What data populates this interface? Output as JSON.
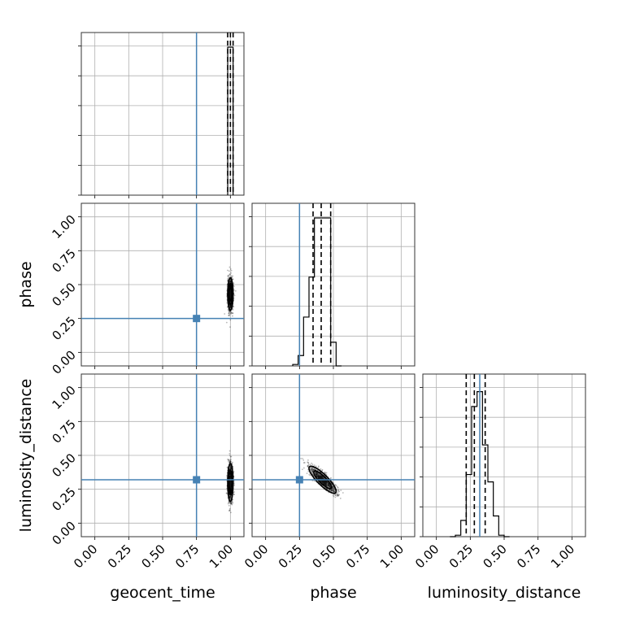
{
  "chart_data": {
    "type": "corner",
    "parameters": [
      {
        "name": "geocent_time",
        "label": "geocent_time",
        "truth": 0.75
      },
      {
        "name": "phase",
        "label": "phase",
        "truth": 0.25
      },
      {
        "name": "luminosity_distance",
        "label": "luminosity_distance",
        "truth": 0.32
      }
    ],
    "axis_range": [
      -0.1,
      1.1
    ],
    "ticks": [
      "0.00",
      "0.25",
      "0.50",
      "0.75",
      "1.00"
    ],
    "grid": true,
    "truth_color": "#4682b4",
    "histograms": [
      {
        "parameter": "geocent_time",
        "bin_edges": [
          0.98,
          1.02
        ],
        "counts": [
          1.0
        ],
        "quantiles": [
          0.98,
          1.0,
          1.02
        ]
      },
      {
        "parameter": "phase",
        "bin_edges": [
          0.2,
          0.24,
          0.28,
          0.32,
          0.36,
          0.4,
          0.44,
          0.48,
          0.52,
          0.56
        ],
        "counts": [
          0.01,
          0.07,
          0.33,
          0.6,
          1.0,
          1.0,
          1.0,
          0.16,
          0.0
        ],
        "quantiles": [
          0.35,
          0.41,
          0.48
        ]
      },
      {
        "parameter": "luminosity_distance",
        "bin_edges": [
          0.1,
          0.14,
          0.18,
          0.22,
          0.26,
          0.3,
          0.34,
          0.38,
          0.42,
          0.46,
          0.5,
          0.54
        ],
        "counts": [
          0.0,
          0.01,
          0.11,
          0.42,
          0.88,
          0.98,
          0.62,
          0.37,
          0.14,
          0.01,
          0.0
        ],
        "quantiles": [
          0.22,
          0.28,
          0.36
        ]
      }
    ],
    "scatter_2d": [
      {
        "x": "geocent_time",
        "y": "phase",
        "center": [
          1.0,
          0.43
        ],
        "spread": [
          0.01,
          0.06
        ]
      },
      {
        "x": "geocent_time",
        "y": "luminosity_distance",
        "center": [
          1.0,
          0.3
        ],
        "spread": [
          0.01,
          0.07
        ]
      },
      {
        "x": "phase",
        "y": "luminosity_distance",
        "center": [
          0.42,
          0.32
        ],
        "spread": [
          0.05,
          0.05
        ],
        "correlation": -0.85
      }
    ]
  }
}
